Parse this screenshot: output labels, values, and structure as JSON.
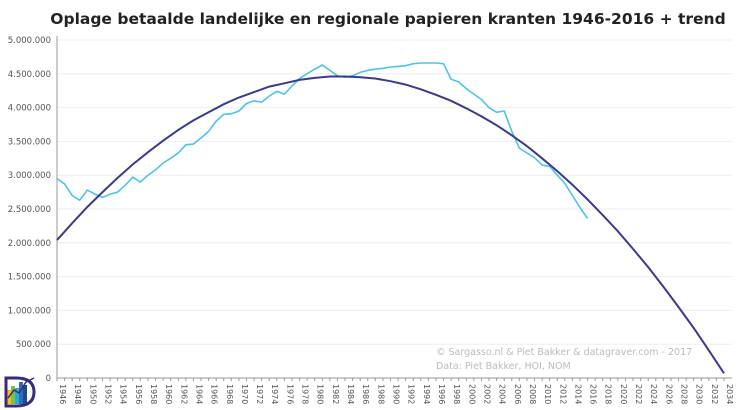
{
  "chart_data": {
    "type": "line",
    "title": "Oplage betaalde landelijke en regionale papieren kranten 1946-2016 + trend",
    "xlabel": "",
    "ylabel": "",
    "xlim": [
      1946,
      2034
    ],
    "ylim": [
      0,
      5000000
    ],
    "grid": true,
    "legend": "none",
    "ytick_labels": [
      "0",
      "500.000",
      "1.000.000",
      "1.500.000",
      "2.000.000",
      "2.500.000",
      "3.000.000",
      "3.500.000",
      "4.000.000",
      "4.500.000",
      "5.000.000"
    ],
    "xtick_labels": [
      "1946",
      "1948",
      "1950",
      "1952",
      "1954",
      "1956",
      "1958",
      "1960",
      "1962",
      "1964",
      "1966",
      "1968",
      "1970",
      "1972",
      "1974",
      "1976",
      "1978",
      "1980",
      "1982",
      "1984",
      "1986",
      "1988",
      "1990",
      "1992",
      "1994",
      "1996",
      "1998",
      "2000",
      "2002",
      "2004",
      "2006",
      "2008",
      "2010",
      "2012",
      "2014",
      "2016",
      "2018",
      "2020",
      "2022",
      "2024",
      "2026",
      "2028",
      "2030",
      "2032",
      "2034"
    ],
    "series": [
      {
        "color": "#4cc3ec",
        "x_start": 1946,
        "values": [
          2950000,
          2870000,
          2700000,
          2630000,
          2780000,
          2720000,
          2670000,
          2720000,
          2750000,
          2850000,
          2970000,
          2900000,
          3000000,
          3080000,
          3180000,
          3250000,
          3330000,
          3450000,
          3460000,
          3550000,
          3650000,
          3800000,
          3900000,
          3910000,
          3950000,
          4060000,
          4100000,
          4080000,
          4170000,
          4240000,
          4200000,
          4320000,
          4430000,
          4500000,
          4570000,
          4630000,
          4550000,
          4470000,
          4450000,
          4470000,
          4520000,
          4550000,
          4570000,
          4580000,
          4600000,
          4610000,
          4620000,
          4650000,
          4660000,
          4660000,
          4660000,
          4650000,
          4420000,
          4380000,
          4280000,
          4200000,
          4120000,
          4000000,
          3930000,
          3950000,
          3650000,
          3400000,
          3330000,
          3260000,
          3150000,
          3130000,
          3000000,
          2880000,
          2700000,
          2520000,
          2360000
        ]
      },
      {
        "color": "#3a3a8f",
        "x_start": 1946,
        "x_step": 2,
        "values": [
          2040000,
          2290000,
          2530000,
          2750000,
          2960000,
          3160000,
          3340000,
          3510000,
          3670000,
          3810000,
          3930000,
          4050000,
          4150000,
          4230000,
          4310000,
          4360000,
          4410000,
          4440000,
          4460000,
          4460000,
          4450000,
          4430000,
          4390000,
          4340000,
          4270000,
          4190000,
          4100000,
          3990000,
          3870000,
          3740000,
          3590000,
          3430000,
          3250000,
          3060000,
          2860000,
          2640000,
          2410000,
          2170000,
          1910000,
          1640000,
          1350000,
          1050000,
          740000,
          410000,
          70000
        ]
      }
    ],
    "annotations": [
      "© Sargasso.nl & Piet Bakker  & datagraver.com - 2017",
      "Data: Piet Bakker, HOI, NOM"
    ]
  },
  "logo": {
    "name": "datagraver-logo",
    "letter": "D"
  }
}
